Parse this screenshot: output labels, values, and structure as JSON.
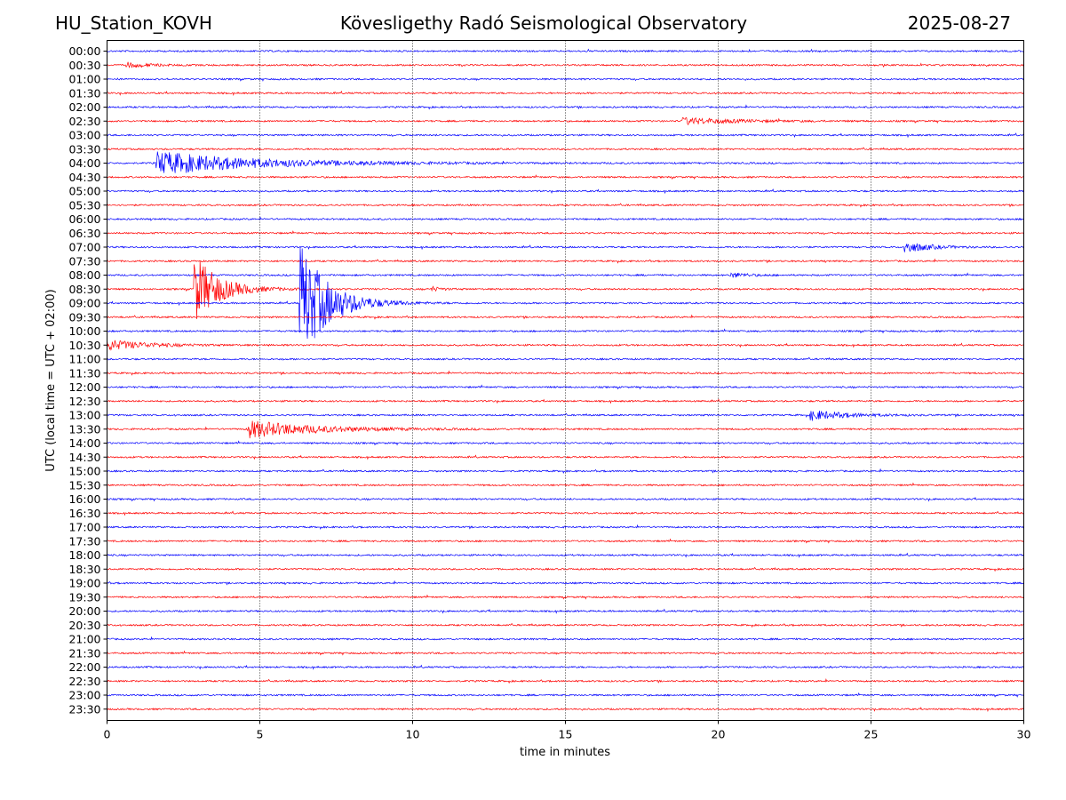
{
  "header": {
    "station": "HU_Station_KOVH",
    "title": "Kövesligethy Radó Seismological Observatory",
    "date": "2025-08-27"
  },
  "chart_data": {
    "type": "line",
    "title": "Kövesligethy Radó Seismological Observatory",
    "xlabel": "time in minutes",
    "ylabel": "UTC (local time = UTC + 02:00)",
    "xlim": [
      0,
      30
    ],
    "x_ticks": [
      "0",
      "5",
      "10",
      "15",
      "20",
      "25",
      "30"
    ],
    "vertical_grid_at": [
      5,
      10,
      15,
      20,
      25
    ],
    "trace_colors": [
      "#0000ff",
      "#ff0000"
    ],
    "rows": [
      "00:00",
      "00:30",
      "01:00",
      "01:30",
      "02:00",
      "02:30",
      "03:00",
      "03:30",
      "04:00",
      "04:30",
      "05:00",
      "05:30",
      "06:00",
      "06:30",
      "07:00",
      "07:30",
      "08:00",
      "08:30",
      "09:00",
      "09:30",
      "10:00",
      "10:30",
      "11:00",
      "11:30",
      "12:00",
      "12:30",
      "13:00",
      "13:30",
      "14:00",
      "14:30",
      "15:00",
      "15:30",
      "16:00",
      "16:30",
      "17:00",
      "17:30",
      "18:00",
      "18:30",
      "19:00",
      "19:30",
      "20:00",
      "20:30",
      "21:00",
      "21:30",
      "22:00",
      "22:30",
      "23:00",
      "23:30"
    ],
    "events": [
      {
        "row": "00:30",
        "start_min": 0.6,
        "duration_min": 2.0,
        "amplitude": 3
      },
      {
        "row": "02:30",
        "start_min": 18.8,
        "duration_min": 4.5,
        "amplitude": 4
      },
      {
        "row": "04:00",
        "start_min": 1.6,
        "duration_min": 9.0,
        "amplitude": 13
      },
      {
        "row": "07:00",
        "start_min": 26.1,
        "duration_min": 2.0,
        "amplitude": 7
      },
      {
        "row": "08:00",
        "start_min": 20.4,
        "duration_min": 1.5,
        "amplitude": 3
      },
      {
        "row": "08:30",
        "start_min": 2.85,
        "duration_min": 2.2,
        "amplitude": 40
      },
      {
        "row": "08:30",
        "start_min": 10.6,
        "duration_min": 0.8,
        "amplitude": 3
      },
      {
        "row": "09:00",
        "start_min": 6.3,
        "duration_min": 2.5,
        "amplitude": 70
      },
      {
        "row": "10:30",
        "start_min": 0.0,
        "duration_min": 3.5,
        "amplitude": 6
      },
      {
        "row": "13:00",
        "start_min": 23.0,
        "duration_min": 3.0,
        "amplitude": 6
      },
      {
        "row": "13:30",
        "start_min": 4.6,
        "duration_min": 6.0,
        "amplitude": 10
      }
    ]
  }
}
